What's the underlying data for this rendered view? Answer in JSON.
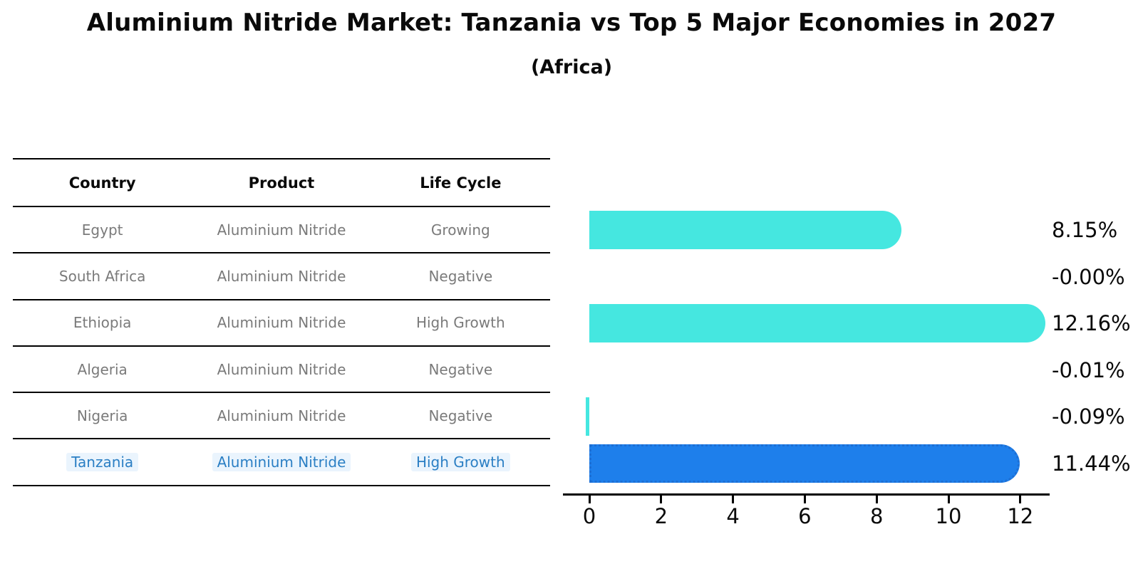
{
  "header": {
    "title": "Aluminium Nitride Market: Tanzania vs Top 5 Major Economies in 2027",
    "subtitle": "(Africa)"
  },
  "table": {
    "columns": [
      "Country",
      "Product",
      "Life Cycle"
    ],
    "rows": [
      {
        "country": "Egypt",
        "product": "Aluminium Nitride",
        "life_cycle": "Growing",
        "highlight": false
      },
      {
        "country": "South Africa",
        "product": "Aluminium Nitride",
        "life_cycle": "Negative",
        "highlight": false
      },
      {
        "country": "Ethiopia",
        "product": "Aluminium Nitride",
        "life_cycle": "High Growth",
        "highlight": false
      },
      {
        "country": "Algeria",
        "product": "Aluminium Nitride",
        "life_cycle": "Negative",
        "highlight": false
      },
      {
        "country": "Nigeria",
        "product": "Aluminium Nitride",
        "life_cycle": "Negative",
        "highlight": false
      },
      {
        "country": "Tanzania",
        "product": "Aluminium Nitride",
        "life_cycle": "High Growth",
        "highlight": true
      }
    ]
  },
  "chart_data": {
    "type": "bar",
    "orientation": "horizontal",
    "title": "Aluminium Nitride Market: Tanzania vs Top 5 Major Economies in 2027 (Africa)",
    "categories": [
      "Egypt",
      "South Africa",
      "Ethiopia",
      "Algeria",
      "Nigeria",
      "Tanzania"
    ],
    "values": [
      8.15,
      -0.0,
      12.16,
      -0.01,
      -0.09,
      11.44
    ],
    "value_labels": [
      "8.15%",
      "-0.00%",
      "12.16%",
      "-0.01%",
      "-0.09%",
      "11.44%"
    ],
    "xticks": [
      0,
      2,
      4,
      6,
      8,
      10,
      12
    ],
    "xtick_labels": [
      "0",
      "2",
      "4",
      "6",
      "8",
      "10",
      "12"
    ],
    "xlim": [
      -0.75,
      12.85
    ],
    "grid": false,
    "legend": "none",
    "highlight_index": 5,
    "colors": {
      "bar": "#45e7e0",
      "highlight_bar": "#1e7feb",
      "highlight_edge": "#1d6fd4",
      "highlight_text": "#2b7fc4",
      "row_text": "#7a7a7a",
      "axis": "#000000",
      "label_text": "#0a0a0a"
    }
  }
}
